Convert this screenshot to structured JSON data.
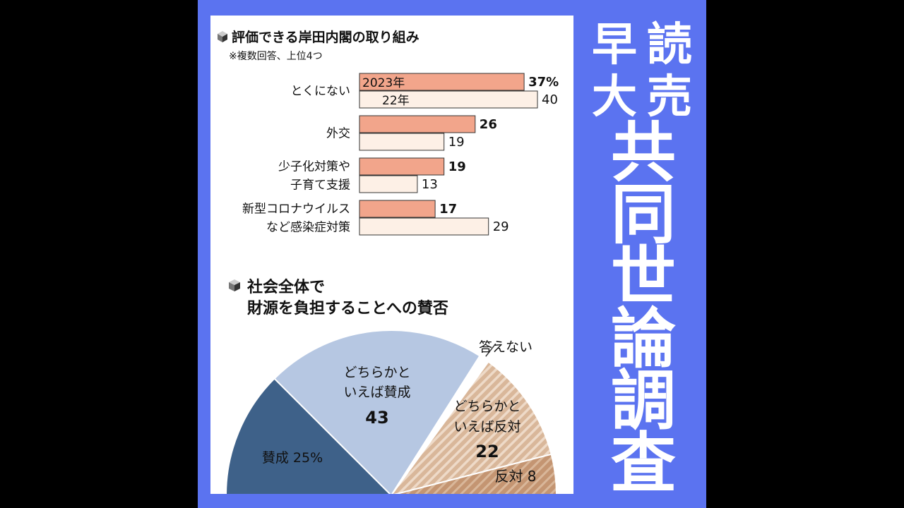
{
  "chart_data": [
    {
      "type": "bar",
      "title": "評価できる岸田内閣の取り組み",
      "subtitle": "※複数回答、上位4つ",
      "categories": [
        "とくにない",
        "外交",
        "少子化対策や子育て支援",
        "新型コロナウイルスなど感染症対策"
      ],
      "category_lines": [
        [
          "とくにない"
        ],
        [
          "外交"
        ],
        [
          "少子化対策や",
          "子育て支援"
        ],
        [
          "新型コロナウイルス",
          "など感染症対策"
        ]
      ],
      "series": [
        {
          "name": "2023年",
          "values": [
            37,
            26,
            19,
            17
          ],
          "color": "#F2A58B"
        },
        {
          "name": "22年",
          "values": [
            40,
            19,
            13,
            29
          ],
          "color": "#FDF0E6"
        }
      ],
      "value_labels": [
        [
          "37%",
          "26",
          "19",
          "17"
        ],
        [
          "40",
          "19",
          "13",
          "29"
        ]
      ]
    },
    {
      "type": "pie",
      "title_lines": [
        "社会全体で",
        "財源を負担することへの賛否"
      ],
      "slices": [
        {
          "label": "賛成",
          "value": 25,
          "display": "25%",
          "color": "#3E6189"
        },
        {
          "label": "どちらかといえば賛成",
          "label_lines": [
            "どちらかと",
            "いえば賛成"
          ],
          "value": 43,
          "display": "43",
          "color": "#B6C7E2"
        },
        {
          "label": "答えない",
          "value": 2,
          "display": "",
          "color": "#FFFFFF"
        },
        {
          "label": "どちらかといえば反対",
          "label_lines": [
            "どちらかと",
            "いえば反対"
          ],
          "value": 22,
          "display": "22",
          "color": "#D9B79A"
        },
        {
          "label": "反対",
          "value": 8,
          "display": "8",
          "color": "#C49572"
        }
      ]
    }
  ],
  "side_title": {
    "top_left": [
      "早",
      "大"
    ],
    "top_right": [
      "読",
      "売"
    ],
    "main": [
      "共",
      "同",
      "世",
      "論",
      "調",
      "査"
    ]
  }
}
